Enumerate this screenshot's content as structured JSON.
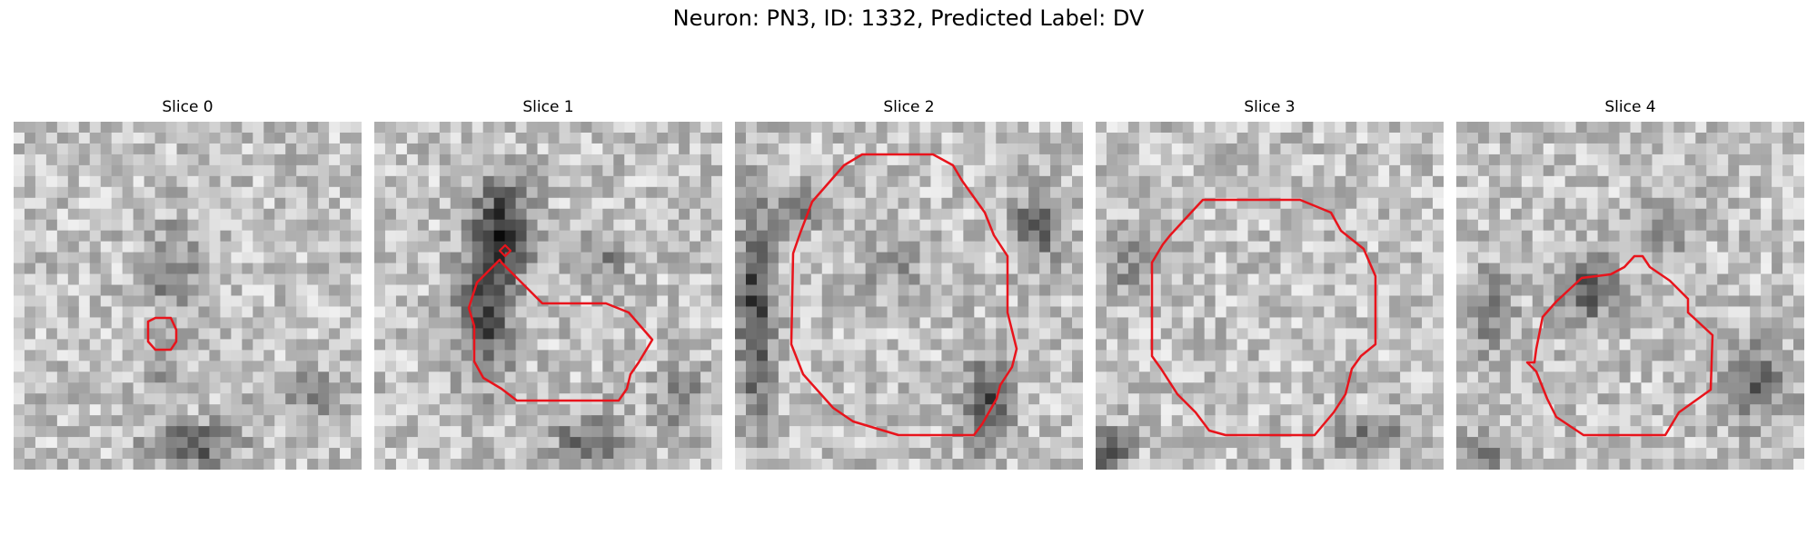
{
  "figure": {
    "title": "Neuron: PN3, ID: 1332, Predicted Label: DV"
  },
  "slices": [
    {
      "title": "Slice 0",
      "seed": 11,
      "dark": [
        [
          0.45,
          0.42,
          0.07,
          0.12,
          70
        ],
        [
          0.52,
          0.93,
          0.12,
          0.06,
          110
        ],
        [
          0.85,
          0.78,
          0.12,
          0.06,
          60
        ],
        [
          0.43,
          0.7,
          0.04,
          0.12,
          55
        ]
      ]
    },
    {
      "title": "Slice 1",
      "seed": 23,
      "dark": [
        [
          0.37,
          0.3,
          0.08,
          0.14,
          130
        ],
        [
          0.32,
          0.55,
          0.08,
          0.18,
          120
        ],
        [
          0.65,
          0.4,
          0.08,
          0.06,
          60
        ],
        [
          0.62,
          0.92,
          0.1,
          0.08,
          90
        ],
        [
          0.88,
          0.8,
          0.08,
          0.1,
          55
        ]
      ]
    },
    {
      "title": "Slice 2",
      "seed": 37,
      "dark": [
        [
          0.06,
          0.55,
          0.05,
          0.3,
          130
        ],
        [
          0.72,
          0.82,
          0.07,
          0.12,
          120
        ],
        [
          0.87,
          0.3,
          0.07,
          0.1,
          100
        ],
        [
          0.45,
          0.4,
          0.1,
          0.1,
          40
        ],
        [
          0.18,
          0.25,
          0.06,
          0.07,
          80
        ]
      ]
    },
    {
      "title": "Slice 3",
      "seed": 41,
      "dark": [
        [
          0.04,
          0.95,
          0.06,
          0.06,
          110
        ],
        [
          0.78,
          0.9,
          0.1,
          0.06,
          70
        ],
        [
          0.1,
          0.4,
          0.06,
          0.1,
          55
        ]
      ]
    },
    {
      "title": "Slice 4",
      "seed": 53,
      "dark": [
        [
          0.38,
          0.48,
          0.08,
          0.1,
          95
        ],
        [
          0.85,
          0.75,
          0.1,
          0.12,
          90
        ],
        [
          0.1,
          0.55,
          0.06,
          0.12,
          70
        ],
        [
          0.6,
          0.3,
          0.08,
          0.08,
          50
        ],
        [
          0.08,
          0.95,
          0.06,
          0.05,
          80
        ]
      ]
    }
  ],
  "colors": {
    "contour": "#e8141c",
    "background": "#ffffff"
  }
}
